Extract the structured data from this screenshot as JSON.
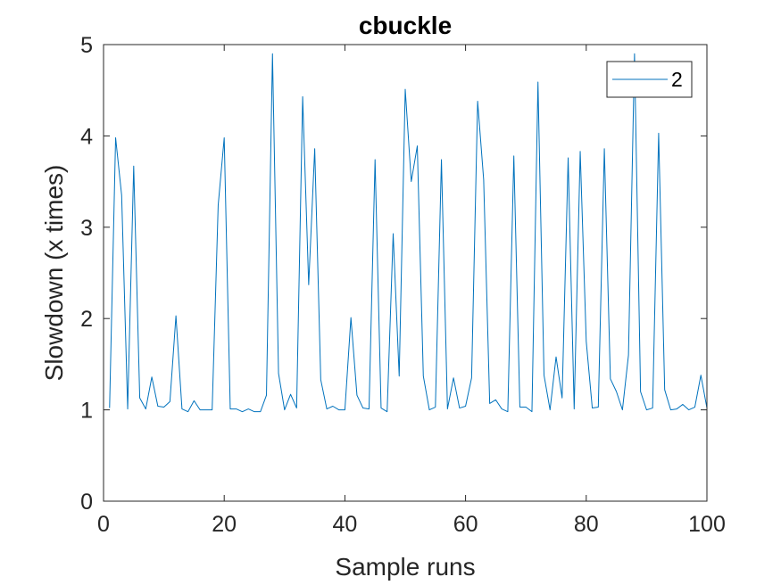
{
  "chart_data": {
    "type": "line",
    "title": "cbuckle",
    "xlabel": "Sample runs",
    "ylabel": "Slowdown (x times)",
    "xlim": [
      0,
      100
    ],
    "ylim": [
      0,
      5
    ],
    "xticks": [
      0,
      20,
      40,
      60,
      80,
      100
    ],
    "yticks": [
      0,
      1,
      2,
      3,
      4,
      5
    ],
    "grid": false,
    "legend_position": "top-right",
    "series": [
      {
        "name": "2",
        "color": "#0072BD",
        "x": [
          1,
          2,
          3,
          4,
          5,
          6,
          7,
          8,
          9,
          10,
          11,
          12,
          13,
          14,
          15,
          16,
          17,
          18,
          19,
          20,
          21,
          22,
          23,
          24,
          25,
          26,
          27,
          28,
          29,
          30,
          31,
          32,
          33,
          34,
          35,
          36,
          37,
          38,
          39,
          40,
          41,
          42,
          43,
          44,
          45,
          46,
          47,
          48,
          49,
          50,
          51,
          52,
          53,
          54,
          55,
          56,
          57,
          58,
          59,
          60,
          61,
          62,
          63,
          64,
          65,
          66,
          67,
          68,
          69,
          70,
          71,
          72,
          73,
          74,
          75,
          76,
          77,
          78,
          79,
          80,
          81,
          82,
          83,
          84,
          85,
          86,
          87,
          88,
          89,
          90,
          91,
          92,
          93,
          94,
          95,
          96,
          97,
          98,
          99,
          100
        ],
        "values": [
          1.02,
          3.98,
          3.35,
          1.01,
          3.67,
          1.13,
          1.01,
          1.36,
          1.04,
          1.03,
          1.09,
          2.03,
          1.01,
          0.98,
          1.1,
          1.0,
          1.0,
          1.0,
          3.24,
          3.98,
          1.01,
          1.01,
          0.98,
          1.01,
          0.98,
          0.98,
          1.16,
          4.9,
          1.4,
          1.0,
          1.17,
          1.02,
          4.43,
          2.37,
          3.86,
          1.33,
          1.01,
          1.04,
          1.0,
          1.0,
          2.01,
          1.16,
          1.02,
          1.01,
          3.74,
          1.02,
          0.98,
          2.93,
          1.37,
          4.51,
          3.5,
          3.89,
          1.37,
          1.0,
          1.03,
          3.74,
          1.01,
          1.35,
          1.02,
          1.04,
          1.35,
          4.38,
          3.52,
          1.07,
          1.11,
          1.01,
          0.98,
          3.78,
          1.03,
          1.03,
          0.98,
          4.59,
          1.38,
          1.0,
          1.58,
          1.13,
          3.76,
          1.01,
          3.83,
          1.75,
          1.02,
          1.03,
          3.86,
          1.34,
          1.2,
          1.0,
          1.6,
          4.9,
          1.2,
          1.0,
          1.02,
          4.03,
          1.22,
          1.0,
          1.01,
          1.06,
          1.0,
          1.03,
          1.38,
          1.02
        ]
      }
    ]
  }
}
